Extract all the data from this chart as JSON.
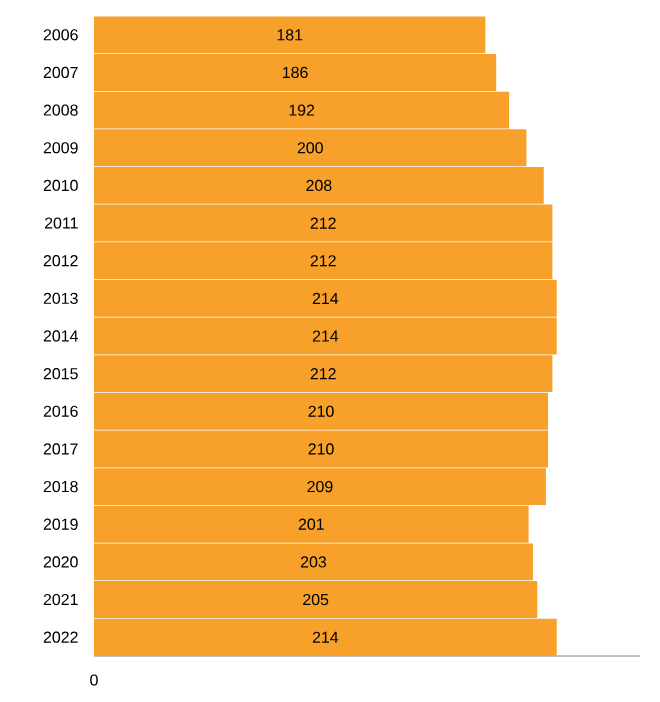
{
  "chart_data": {
    "type": "bar",
    "orientation": "horizontal",
    "categories": [
      "2006",
      "2007",
      "2008",
      "2009",
      "2010",
      "2011",
      "2012",
      "2013",
      "2014",
      "2015",
      "2016",
      "2017",
      "2018",
      "2019",
      "2020",
      "2021",
      "2022"
    ],
    "values": [
      181,
      186,
      192,
      200,
      208,
      212,
      212,
      214,
      214,
      212,
      210,
      210,
      209,
      201,
      203,
      205,
      214
    ],
    "data_labels": true,
    "color": "#f7a12a",
    "annotations": [
      "0"
    ]
  }
}
